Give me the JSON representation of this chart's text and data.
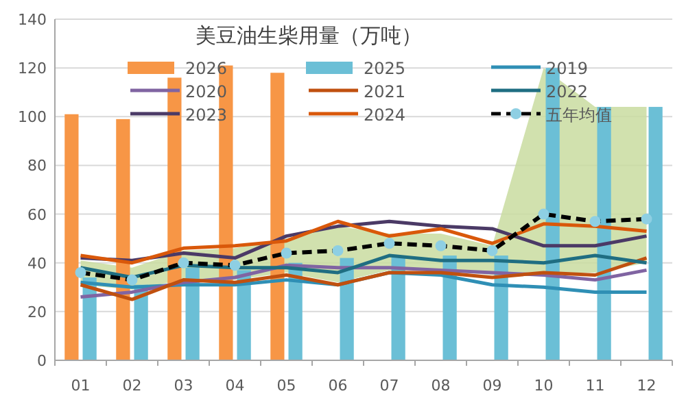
{
  "chart_data": {
    "type": "bar",
    "title": "美豆油生柴用量（万吨）",
    "categories": [
      "01",
      "02",
      "03",
      "04",
      "05",
      "06",
      "07",
      "08",
      "09",
      "10",
      "11",
      "12"
    ],
    "ylim": [
      0,
      140
    ],
    "yticks": [
      0,
      20,
      40,
      60,
      80,
      100,
      120,
      140
    ],
    "grid": "y",
    "legend": "top",
    "series": [
      {
        "name": "2026",
        "color": "#f79646",
        "values": [
          101,
          99,
          116,
          121,
          118,
          null,
          null,
          null,
          null,
          null,
          null,
          null
        ]
      },
      {
        "name": "2025",
        "color": "#6bbfd6",
        "values": [
          34,
          31,
          38,
          37,
          40,
          42,
          43,
          43,
          43,
          120,
          104,
          104
        ]
      },
      {
        "name": "2019",
        "type": "line",
        "color": "#2f8fb5",
        "values": [
          32,
          30,
          31,
          31,
          33,
          31,
          36,
          35,
          31,
          30,
          28,
          28
        ]
      },
      {
        "name": "2020",
        "type": "line",
        "color": "#8064a2",
        "values": [
          26,
          28,
          32,
          34,
          39,
          38,
          38,
          37,
          36,
          35,
          33,
          37
        ]
      },
      {
        "name": "2021",
        "type": "line",
        "color": "#c0500f",
        "values": [
          31,
          25,
          33,
          32,
          35,
          31,
          36,
          36,
          34,
          36,
          35,
          42
        ]
      },
      {
        "name": "2022",
        "type": "line",
        "color": "#1f6e82",
        "values": [
          38,
          34,
          39,
          38,
          38,
          36,
          43,
          41,
          41,
          40,
          43,
          40
        ]
      },
      {
        "name": "2023",
        "type": "line",
        "color": "#4b3a66",
        "values": [
          42,
          41,
          44,
          42,
          51,
          55,
          57,
          55,
          54,
          47,
          47,
          51
        ]
      },
      {
        "name": "2024",
        "type": "line",
        "color": "#d9580a",
        "values": [
          43,
          40,
          46,
          47,
          49,
          57,
          51,
          54,
          48,
          56,
          55,
          53
        ]
      },
      {
        "name": "五年均值",
        "type": "line",
        "color": "#000000",
        "marker": "circle",
        "line_style": "dashed",
        "values": [
          36,
          33,
          40,
          39,
          44,
          45,
          48,
          47,
          45,
          60,
          57,
          58
        ],
        "lower": [
          31,
          29,
          33,
          33,
          36,
          32,
          37,
          37,
          35,
          36,
          36,
          40
        ],
        "upper": [
          41,
          38,
          45,
          46,
          50,
          55,
          52,
          52,
          47,
          120,
          104,
          104
        ]
      }
    ]
  }
}
